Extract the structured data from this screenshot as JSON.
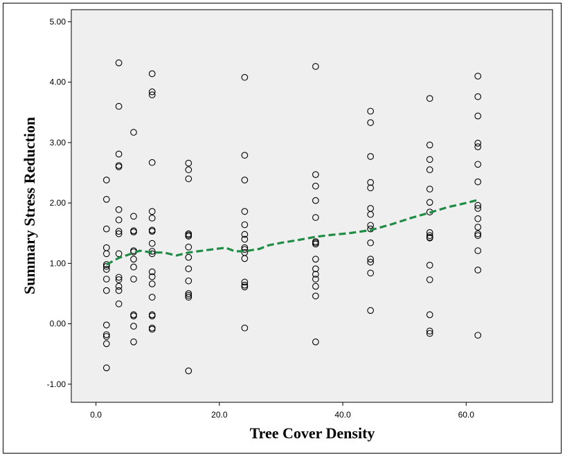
{
  "chart_data": {
    "type": "scatter",
    "title": "",
    "xlabel": "Tree Cover Density",
    "ylabel": "Summary Stress Reduction",
    "xlim": [
      -4,
      74
    ],
    "ylim": [
      -1.3,
      5.2
    ],
    "xticks": [
      0,
      20,
      40,
      60
    ],
    "xtick_labels": [
      "0.0",
      "20.0",
      "40.0",
      "60.0"
    ],
    "yticks": [
      -1,
      0,
      1,
      2,
      3,
      4,
      5
    ],
    "ytick_labels": [
      "-1.00",
      "0.00",
      "1.00",
      "2.00",
      "3.00",
      "4.00",
      "5.00"
    ],
    "grid": false,
    "legend": "none",
    "colors": {
      "plot_background": "#efefef",
      "points": "#000000",
      "fit_line": "#1e8c44"
    },
    "series": [
      {
        "marker": "open-circle",
        "points": [
          [
            1.7,
            2.38
          ],
          [
            1.7,
            2.06
          ],
          [
            1.7,
            1.57
          ],
          [
            1.7,
            1.26
          ],
          [
            1.7,
            1.16
          ],
          [
            1.7,
            0.98
          ],
          [
            1.7,
            0.95
          ],
          [
            1.7,
            0.9
          ],
          [
            1.7,
            0.74
          ],
          [
            1.7,
            0.55
          ],
          [
            1.7,
            -0.02
          ],
          [
            1.7,
            -0.18
          ],
          [
            1.7,
            -0.21
          ],
          [
            1.7,
            -0.33
          ],
          [
            1.7,
            -0.73
          ],
          [
            3.7,
            4.32
          ],
          [
            3.7,
            3.6
          ],
          [
            3.7,
            2.81
          ],
          [
            3.7,
            2.62
          ],
          [
            3.7,
            2.6
          ],
          [
            3.7,
            1.89
          ],
          [
            3.7,
            1.72
          ],
          [
            3.7,
            1.53
          ],
          [
            3.7,
            1.49
          ],
          [
            3.7,
            1.16
          ],
          [
            3.7,
            0.77
          ],
          [
            3.7,
            0.73
          ],
          [
            3.7,
            0.62
          ],
          [
            3.7,
            0.55
          ],
          [
            3.7,
            0.33
          ],
          [
            6.1,
            3.17
          ],
          [
            6.1,
            1.78
          ],
          [
            6.1,
            1.54
          ],
          [
            6.1,
            1.52
          ],
          [
            6.1,
            1.21
          ],
          [
            6.1,
            1.19
          ],
          [
            6.1,
            1.07
          ],
          [
            6.1,
            0.94
          ],
          [
            6.1,
            0.74
          ],
          [
            6.1,
            0.15
          ],
          [
            6.1,
            0.13
          ],
          [
            6.1,
            -0.04
          ],
          [
            6.1,
            -0.3
          ],
          [
            9.1,
            4.14
          ],
          [
            9.1,
            3.84
          ],
          [
            9.1,
            3.79
          ],
          [
            9.1,
            2.67
          ],
          [
            9.1,
            1.86
          ],
          [
            9.1,
            1.75
          ],
          [
            9.1,
            1.55
          ],
          [
            9.1,
            1.53
          ],
          [
            9.1,
            1.33
          ],
          [
            9.1,
            1.2
          ],
          [
            9.1,
            1.16
          ],
          [
            9.1,
            0.86
          ],
          [
            9.1,
            0.78
          ],
          [
            9.1,
            0.66
          ],
          [
            9.1,
            0.44
          ],
          [
            9.1,
            0.15
          ],
          [
            9.1,
            0.13
          ],
          [
            9.1,
            -0.07
          ],
          [
            9.1,
            -0.09
          ],
          [
            15.0,
            2.66
          ],
          [
            15.0,
            2.55
          ],
          [
            15.0,
            2.4
          ],
          [
            15.0,
            1.49
          ],
          [
            15.0,
            1.47
          ],
          [
            15.0,
            1.45
          ],
          [
            15.0,
            1.27
          ],
          [
            15.0,
            1.1
          ],
          [
            15.0,
            0.91
          ],
          [
            15.0,
            0.71
          ],
          [
            15.0,
            0.5
          ],
          [
            15.0,
            0.47
          ],
          [
            15.0,
            0.44
          ],
          [
            15.0,
            -0.78
          ],
          [
            24.1,
            4.08
          ],
          [
            24.1,
            2.79
          ],
          [
            24.1,
            2.38
          ],
          [
            24.1,
            1.86
          ],
          [
            24.1,
            1.64
          ],
          [
            24.1,
            1.48
          ],
          [
            24.1,
            1.4
          ],
          [
            24.1,
            1.26
          ],
          [
            24.1,
            1.23
          ],
          [
            24.1,
            1.18
          ],
          [
            24.1,
            1.08
          ],
          [
            24.1,
            0.69
          ],
          [
            24.1,
            0.64
          ],
          [
            24.1,
            0.61
          ],
          [
            24.1,
            -0.07
          ],
          [
            35.6,
            4.26
          ],
          [
            35.6,
            2.47
          ],
          [
            35.6,
            2.28
          ],
          [
            35.6,
            2.04
          ],
          [
            35.6,
            1.76
          ],
          [
            35.6,
            1.36
          ],
          [
            35.6,
            1.34
          ],
          [
            35.6,
            1.32
          ],
          [
            35.6,
            1.07
          ],
          [
            35.6,
            0.91
          ],
          [
            35.6,
            0.82
          ],
          [
            35.6,
            0.74
          ],
          [
            35.6,
            0.62
          ],
          [
            35.6,
            0.46
          ],
          [
            35.6,
            -0.3
          ],
          [
            44.5,
            3.52
          ],
          [
            44.5,
            3.33
          ],
          [
            44.5,
            2.77
          ],
          [
            44.5,
            2.34
          ],
          [
            44.5,
            2.25
          ],
          [
            44.5,
            1.91
          ],
          [
            44.5,
            1.81
          ],
          [
            44.5,
            1.63
          ],
          [
            44.5,
            1.57
          ],
          [
            44.5,
            1.34
          ],
          [
            44.5,
            1.07
          ],
          [
            44.5,
            1.02
          ],
          [
            44.5,
            0.84
          ],
          [
            44.5,
            0.22
          ],
          [
            54.1,
            3.73
          ],
          [
            54.1,
            2.96
          ],
          [
            54.1,
            2.72
          ],
          [
            54.1,
            2.55
          ],
          [
            54.1,
            2.23
          ],
          [
            54.1,
            2.01
          ],
          [
            54.1,
            1.85
          ],
          [
            54.1,
            1.51
          ],
          [
            54.1,
            1.46
          ],
          [
            54.1,
            1.43
          ],
          [
            54.1,
            1.42
          ],
          [
            54.1,
            0.97
          ],
          [
            54.1,
            0.73
          ],
          [
            54.1,
            0.15
          ],
          [
            54.1,
            -0.12
          ],
          [
            54.1,
            -0.16
          ],
          [
            61.9,
            4.1
          ],
          [
            61.9,
            3.76
          ],
          [
            61.9,
            3.44
          ],
          [
            61.9,
            2.99
          ],
          [
            61.9,
            2.93
          ],
          [
            61.9,
            2.64
          ],
          [
            61.9,
            2.35
          ],
          [
            61.9,
            1.96
          ],
          [
            61.9,
            1.91
          ],
          [
            61.9,
            1.74
          ],
          [
            61.9,
            1.6
          ],
          [
            61.9,
            1.49
          ],
          [
            61.9,
            1.46
          ],
          [
            61.9,
            1.21
          ],
          [
            61.9,
            0.89
          ],
          [
            61.9,
            -0.19
          ]
        ]
      }
    ],
    "fit_line": {
      "style": "dashed",
      "points": [
        [
          1.7,
          0.98
        ],
        [
          3.7,
          1.09
        ],
        [
          7.1,
          1.21
        ],
        [
          9.1,
          1.18
        ],
        [
          11.0,
          1.18
        ],
        [
          13.0,
          1.13
        ],
        [
          15.0,
          1.18
        ],
        [
          18.0,
          1.22
        ],
        [
          21.0,
          1.26
        ],
        [
          22.5,
          1.2
        ],
        [
          24.1,
          1.2
        ],
        [
          26.5,
          1.24
        ],
        [
          28.0,
          1.3
        ],
        [
          30.0,
          1.34
        ],
        [
          33.0,
          1.39
        ],
        [
          35.6,
          1.44
        ],
        [
          38.0,
          1.47
        ],
        [
          41.0,
          1.5
        ],
        [
          44.5,
          1.55
        ],
        [
          48.0,
          1.65
        ],
        [
          51.0,
          1.75
        ],
        [
          54.1,
          1.84
        ],
        [
          57.0,
          1.93
        ],
        [
          60.0,
          2.0
        ],
        [
          61.9,
          2.05
        ]
      ]
    }
  }
}
